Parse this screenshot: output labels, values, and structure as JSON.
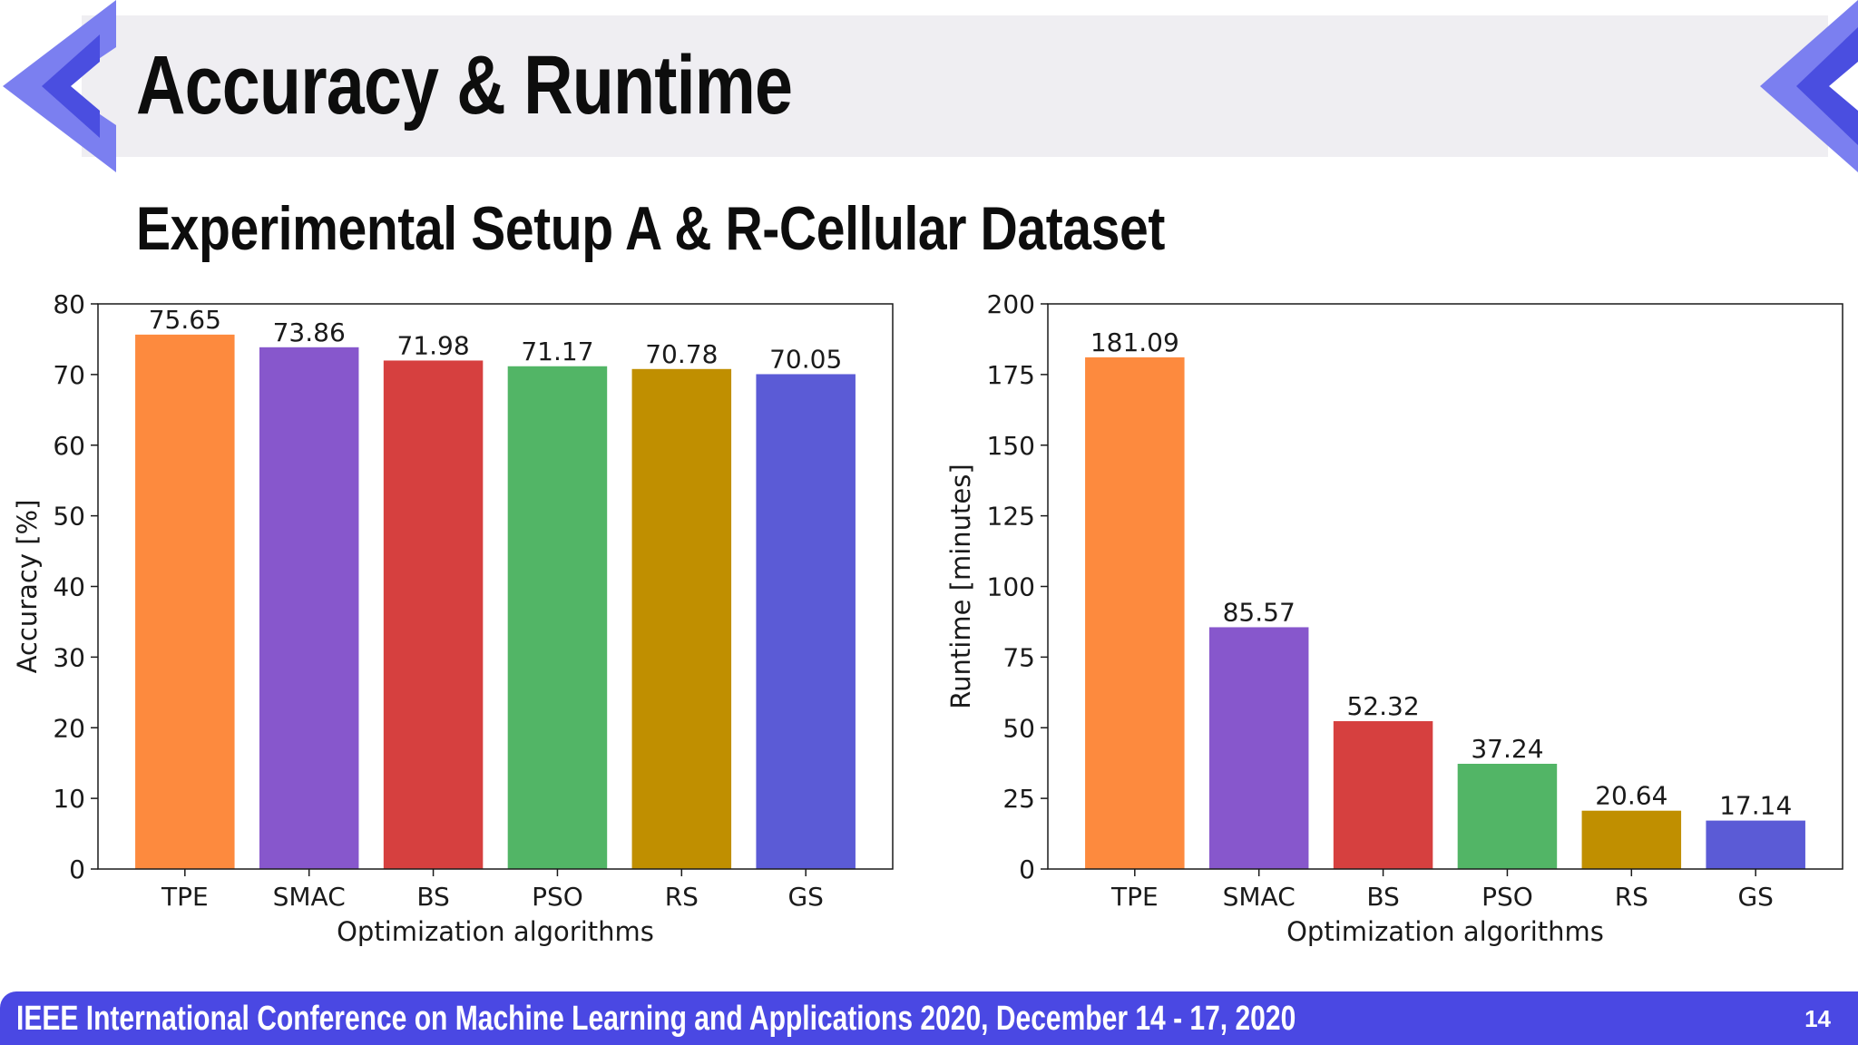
{
  "slide": {
    "title": "Accuracy & Runtime",
    "subtitle": "Experimental Setup A & R-Cellular Dataset",
    "footer": "IEEE International Conference on Machine Learning and Applications 2020, December 14 - 17, 2020",
    "page_number": "14"
  },
  "colors": {
    "banner": "#efeef2",
    "accent_blue": "#4a48e3",
    "chevron_light": "#7b7ff0",
    "chevron_dark": "#4a4ee0"
  },
  "chart_data": [
    {
      "type": "bar",
      "categories": [
        "TPE",
        "SMAC",
        "BS",
        "PSO",
        "RS",
        "GS"
      ],
      "values": [
        75.65,
        73.86,
        71.98,
        71.17,
        70.78,
        70.05
      ],
      "value_labels": [
        "75.65",
        "73.86",
        "71.98",
        "71.17",
        "70.78",
        "70.05"
      ],
      "bar_colors": [
        "#fd8a3e",
        "#8757cc",
        "#d6403f",
        "#52b566",
        "#c08f00",
        "#5b5bd6"
      ],
      "xlabel": "Optimization algorithms",
      "ylabel": "Accuracy [%]",
      "ylim": [
        0,
        80
      ],
      "yticks": [
        0,
        10,
        20,
        30,
        40,
        50,
        60,
        70,
        80
      ],
      "grid": false
    },
    {
      "type": "bar",
      "categories": [
        "TPE",
        "SMAC",
        "BS",
        "PSO",
        "RS",
        "GS"
      ],
      "values": [
        181.09,
        85.57,
        52.32,
        37.24,
        20.64,
        17.14
      ],
      "value_labels": [
        "181.09",
        "85.57",
        "52.32",
        "37.24",
        "20.64",
        "17.14"
      ],
      "bar_colors": [
        "#fd8a3e",
        "#8757cc",
        "#d6403f",
        "#52b566",
        "#c08f00",
        "#5b5bd6"
      ],
      "xlabel": "Optimization algorithms",
      "ylabel": "Runtime [minutes]",
      "ylim": [
        0,
        200
      ],
      "yticks": [
        0,
        25,
        50,
        75,
        100,
        125,
        150,
        175,
        200
      ],
      "grid": false
    }
  ]
}
